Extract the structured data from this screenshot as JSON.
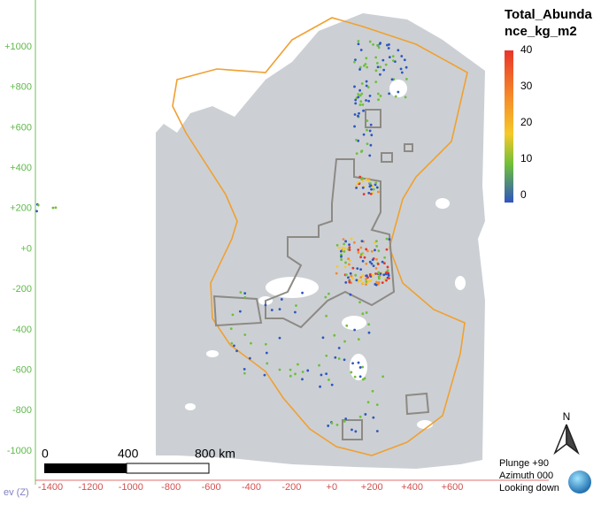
{
  "axes": {
    "y_ticks": [
      "+1000",
      "+800",
      "+600",
      "+400",
      "+200",
      "+0",
      "-200",
      "-400",
      "-600",
      "-800",
      "-1000"
    ],
    "x_ticks": [
      "-1400",
      "-1200",
      "-1000",
      "-800",
      "-600",
      "-400",
      "-200",
      "+0",
      "+200",
      "+400",
      "+600"
    ],
    "vertical_axis_label": "ev (Z)"
  },
  "legend": {
    "title_lines": [
      "Total_Abunda",
      "nce_kg_m2"
    ],
    "ticks": [
      "40",
      "30",
      "20",
      "10",
      "0"
    ]
  },
  "scale_bar": {
    "labels": [
      "0",
      "400",
      "800 km"
    ]
  },
  "compass": {
    "label": "N"
  },
  "orientation": {
    "lines": [
      "Plunge +90",
      "Azimuth 000",
      "Looking down"
    ]
  }
}
